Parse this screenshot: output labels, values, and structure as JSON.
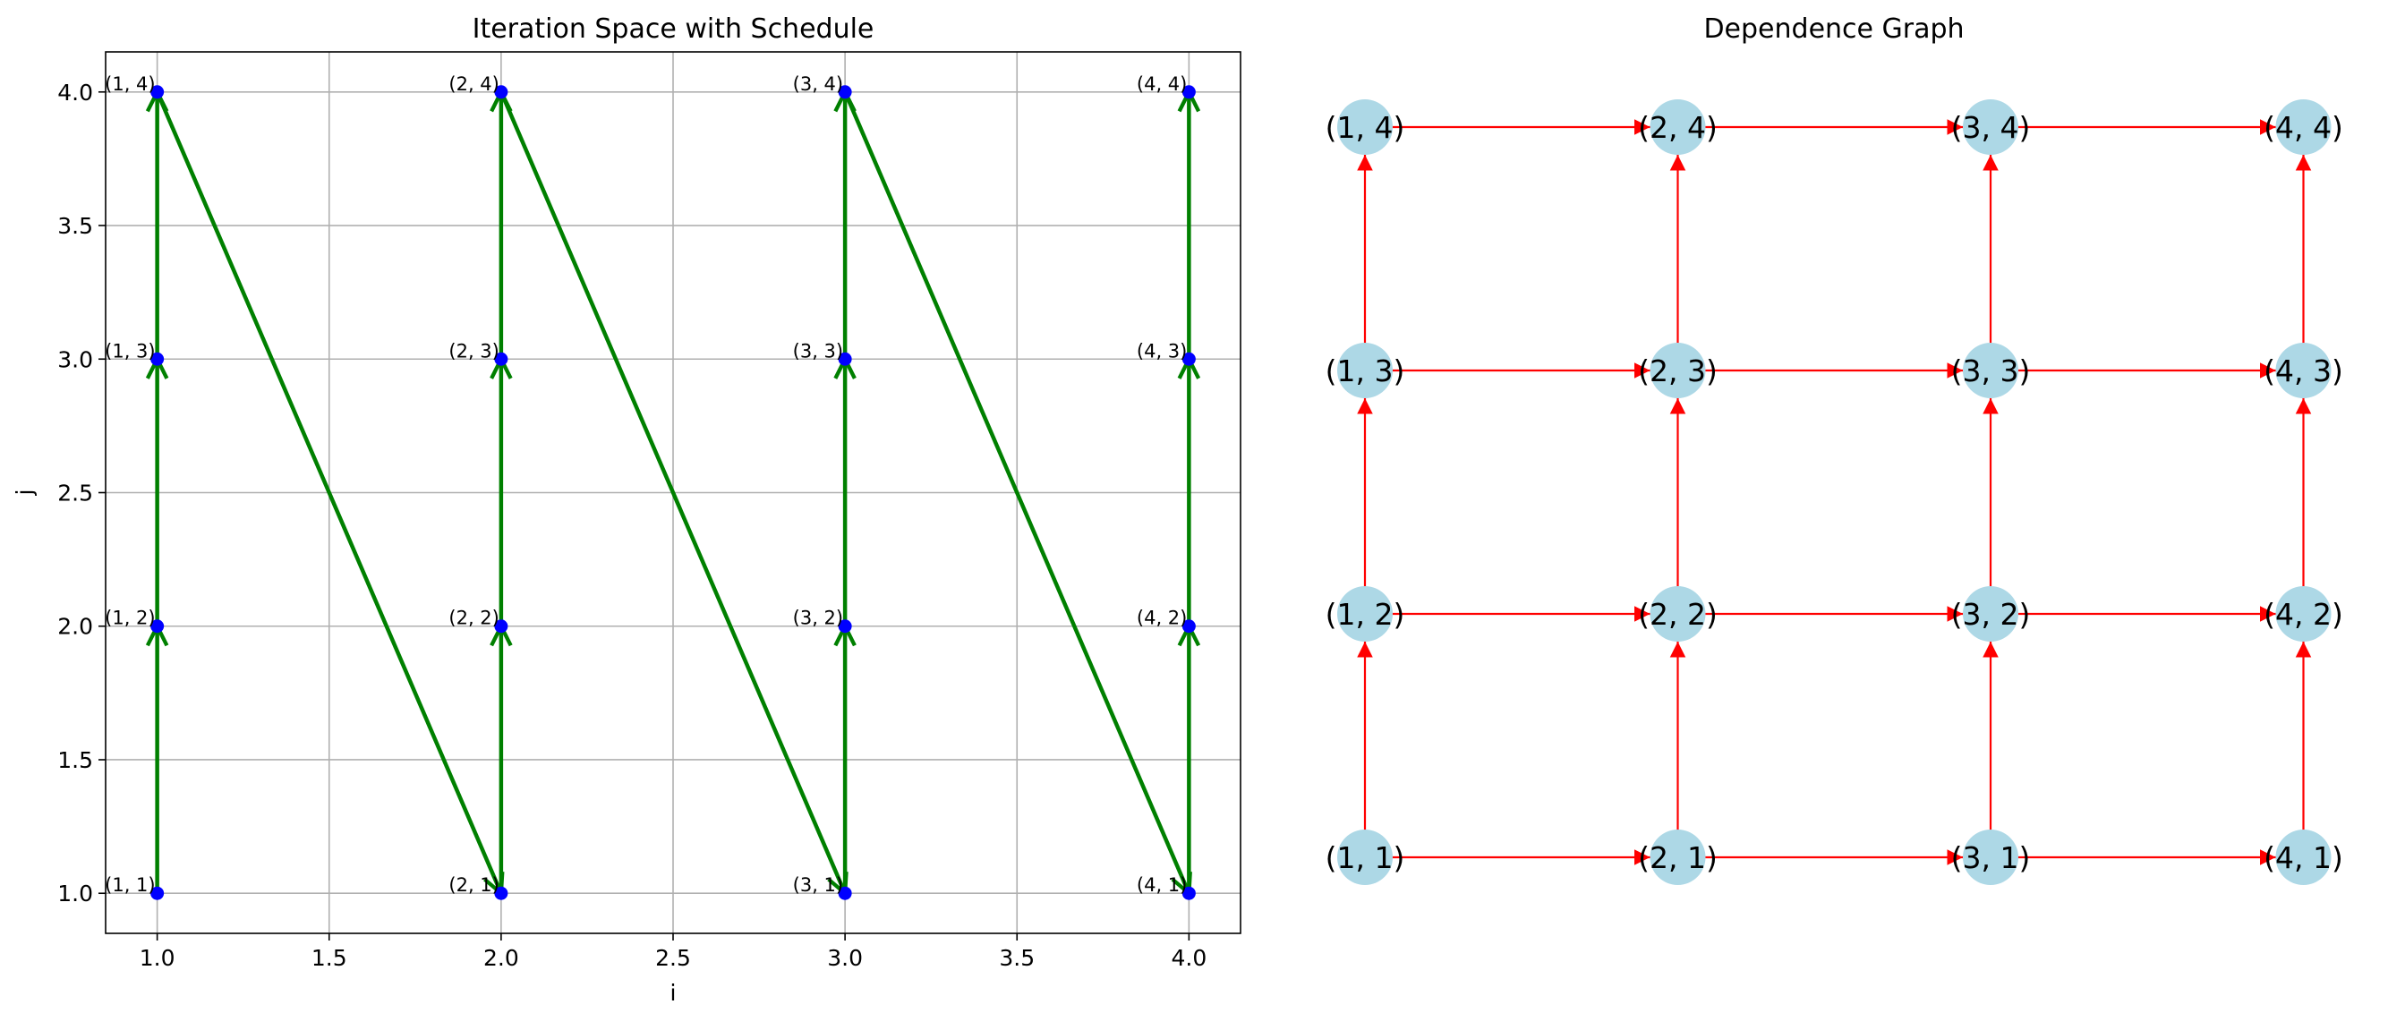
{
  "chart_data": [
    {
      "type": "scatter",
      "title": "Iteration Space with Schedule",
      "xlabel": "i",
      "ylabel": "j",
      "xlim": [
        0.85,
        4.15
      ],
      "ylim": [
        0.85,
        4.15
      ],
      "xticks": [
        1.0,
        1.5,
        2.0,
        2.5,
        3.0,
        3.5,
        4.0
      ],
      "yticks": [
        1.0,
        1.5,
        2.0,
        2.5,
        3.0,
        3.5,
        4.0
      ],
      "xtick_labels": [
        "1.0",
        "1.5",
        "2.0",
        "2.5",
        "3.0",
        "3.5",
        "4.0"
      ],
      "ytick_labels": [
        "1.0",
        "1.5",
        "2.0",
        "2.5",
        "3.0",
        "3.5",
        "4.0"
      ],
      "grid": true,
      "point_color": "#0000ff",
      "arrow_color": "#008000",
      "points": [
        {
          "x": 1,
          "y": 1,
          "label": "(1, 1)"
        },
        {
          "x": 1,
          "y": 2,
          "label": "(1, 2)"
        },
        {
          "x": 1,
          "y": 3,
          "label": "(1, 3)"
        },
        {
          "x": 1,
          "y": 4,
          "label": "(1, 4)"
        },
        {
          "x": 2,
          "y": 1,
          "label": "(2, 1)"
        },
        {
          "x": 2,
          "y": 2,
          "label": "(2, 2)"
        },
        {
          "x": 2,
          "y": 3,
          "label": "(2, 3)"
        },
        {
          "x": 2,
          "y": 4,
          "label": "(2, 4)"
        },
        {
          "x": 3,
          "y": 1,
          "label": "(3, 1)"
        },
        {
          "x": 3,
          "y": 2,
          "label": "(3, 2)"
        },
        {
          "x": 3,
          "y": 3,
          "label": "(3, 3)"
        },
        {
          "x": 3,
          "y": 4,
          "label": "(3, 4)"
        },
        {
          "x": 4,
          "y": 1,
          "label": "(4, 1)"
        },
        {
          "x": 4,
          "y": 2,
          "label": "(4, 2)"
        },
        {
          "x": 4,
          "y": 3,
          "label": "(4, 3)"
        },
        {
          "x": 4,
          "y": 4,
          "label": "(4, 4)"
        }
      ],
      "schedule": [
        [
          1,
          1
        ],
        [
          1,
          2
        ],
        [
          1,
          3
        ],
        [
          1,
          4
        ],
        [
          2,
          1
        ],
        [
          2,
          2
        ],
        [
          2,
          3
        ],
        [
          2,
          4
        ],
        [
          3,
          1
        ],
        [
          3,
          2
        ],
        [
          3,
          3
        ],
        [
          3,
          4
        ],
        [
          4,
          1
        ],
        [
          4,
          2
        ],
        [
          4,
          3
        ],
        [
          4,
          4
        ]
      ]
    },
    {
      "type": "diagram",
      "title": "Dependence Graph",
      "node_color": "#add8e6",
      "edge_color": "#ff0000",
      "nodes": [
        {
          "i": 1,
          "j": 1,
          "label": "(1, 1)"
        },
        {
          "i": 1,
          "j": 2,
          "label": "(1, 2)"
        },
        {
          "i": 1,
          "j": 3,
          "label": "(1, 3)"
        },
        {
          "i": 1,
          "j": 4,
          "label": "(1, 4)"
        },
        {
          "i": 2,
          "j": 1,
          "label": "(2, 1)"
        },
        {
          "i": 2,
          "j": 2,
          "label": "(2, 2)"
        },
        {
          "i": 2,
          "j": 3,
          "label": "(2, 3)"
        },
        {
          "i": 2,
          "j": 4,
          "label": "(2, 4)"
        },
        {
          "i": 3,
          "j": 1,
          "label": "(3, 1)"
        },
        {
          "i": 3,
          "j": 2,
          "label": "(3, 2)"
        },
        {
          "i": 3,
          "j": 3,
          "label": "(3, 3)"
        },
        {
          "i": 3,
          "j": 4,
          "label": "(3, 4)"
        },
        {
          "i": 4,
          "j": 1,
          "label": "(4, 1)"
        },
        {
          "i": 4,
          "j": 2,
          "label": "(4, 2)"
        },
        {
          "i": 4,
          "j": 3,
          "label": "(4, 3)"
        },
        {
          "i": 4,
          "j": 4,
          "label": "(4, 4)"
        }
      ],
      "edges": [
        [
          [
            1,
            1
          ],
          [
            2,
            1
          ]
        ],
        [
          [
            2,
            1
          ],
          [
            3,
            1
          ]
        ],
        [
          [
            3,
            1
          ],
          [
            4,
            1
          ]
        ],
        [
          [
            1,
            2
          ],
          [
            2,
            2
          ]
        ],
        [
          [
            2,
            2
          ],
          [
            3,
            2
          ]
        ],
        [
          [
            3,
            2
          ],
          [
            4,
            2
          ]
        ],
        [
          [
            1,
            3
          ],
          [
            2,
            3
          ]
        ],
        [
          [
            2,
            3
          ],
          [
            3,
            3
          ]
        ],
        [
          [
            3,
            3
          ],
          [
            4,
            3
          ]
        ],
        [
          [
            1,
            4
          ],
          [
            2,
            4
          ]
        ],
        [
          [
            2,
            4
          ],
          [
            3,
            4
          ]
        ],
        [
          [
            3,
            4
          ],
          [
            4,
            4
          ]
        ],
        [
          [
            1,
            1
          ],
          [
            1,
            2
          ]
        ],
        [
          [
            1,
            2
          ],
          [
            1,
            3
          ]
        ],
        [
          [
            1,
            3
          ],
          [
            1,
            4
          ]
        ],
        [
          [
            2,
            1
          ],
          [
            2,
            2
          ]
        ],
        [
          [
            2,
            2
          ],
          [
            2,
            3
          ]
        ],
        [
          [
            2,
            3
          ],
          [
            2,
            4
          ]
        ],
        [
          [
            3,
            1
          ],
          [
            3,
            2
          ]
        ],
        [
          [
            3,
            2
          ],
          [
            3,
            3
          ]
        ],
        [
          [
            3,
            3
          ],
          [
            3,
            4
          ]
        ],
        [
          [
            4,
            1
          ],
          [
            4,
            2
          ]
        ],
        [
          [
            4,
            2
          ],
          [
            4,
            3
          ]
        ],
        [
          [
            4,
            3
          ],
          [
            4,
            4
          ]
        ]
      ]
    }
  ]
}
